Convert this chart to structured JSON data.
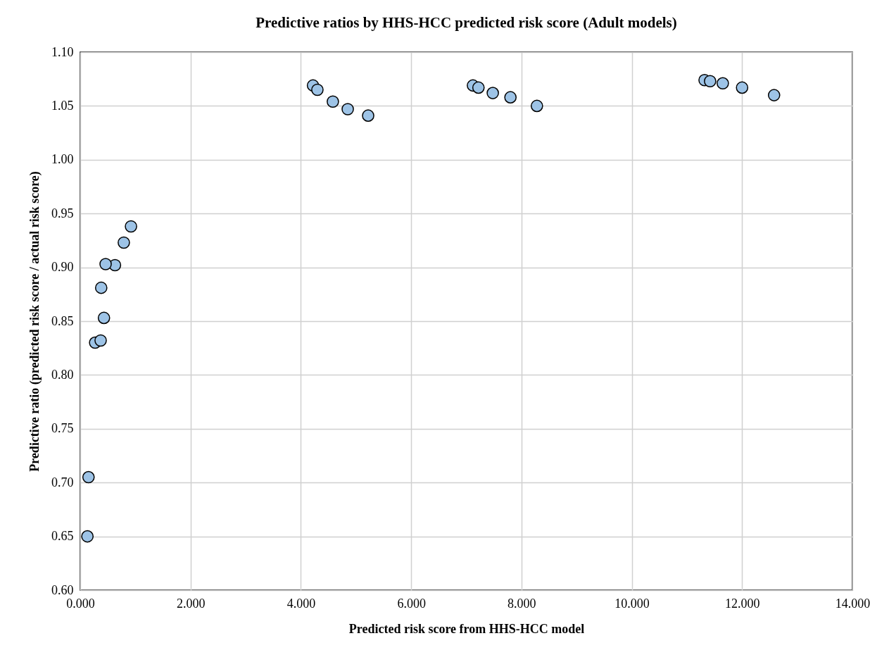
{
  "chart_data": {
    "type": "scatter",
    "title": "Predictive ratios by HHS-HCC predicted risk score (Adult models)",
    "xlabel": "Predicted risk score from HHS-HCC model",
    "ylabel": "Predictive ratio (predicted risk score / actual risk score)",
    "x": [
      0.13,
      0.15,
      0.27,
      0.37,
      0.43,
      0.38,
      0.63,
      0.46,
      0.79,
      0.92,
      4.22,
      4.3,
      4.58,
      4.85,
      5.22,
      7.12,
      7.22,
      7.48,
      7.8,
      8.28,
      11.32,
      11.42,
      11.65,
      12.0,
      12.58
    ],
    "series": [
      {
        "color": "#9dc3e6",
        "values": [
          0.65,
          0.705,
          0.83,
          0.832,
          0.853,
          0.881,
          0.902,
          0.903,
          0.923,
          0.938,
          1.069,
          1.065,
          1.054,
          1.047,
          1.041,
          1.069,
          1.067,
          1.062,
          1.058,
          1.05,
          1.074,
          1.073,
          1.071,
          1.067,
          1.06
        ]
      }
    ],
    "xlim": [
      0,
      14
    ],
    "ylim": [
      0.6,
      1.1
    ],
    "xticks": [
      {
        "value": 0,
        "label": "0.000"
      },
      {
        "value": 2,
        "label": "2.000"
      },
      {
        "value": 4,
        "label": "4.000"
      },
      {
        "value": 6,
        "label": "6.000"
      },
      {
        "value": 8,
        "label": "8.000"
      },
      {
        "value": 10,
        "label": "10.000"
      },
      {
        "value": 12,
        "label": "12.000"
      },
      {
        "value": 14,
        "label": "14.000"
      }
    ],
    "yticks": [
      {
        "value": 0.6,
        "label": "0.60"
      },
      {
        "value": 0.65,
        "label": "0.65"
      },
      {
        "value": 0.7,
        "label": "0.70"
      },
      {
        "value": 0.75,
        "label": "0.75"
      },
      {
        "value": 0.8,
        "label": "0.80"
      },
      {
        "value": 0.85,
        "label": "0.85"
      },
      {
        "value": 0.9,
        "label": "0.90"
      },
      {
        "value": 0.95,
        "label": "0.95"
      },
      {
        "value": 1.0,
        "label": "1.00"
      },
      {
        "value": 1.05,
        "label": "1.05"
      },
      {
        "value": 1.1,
        "label": "1.10"
      }
    ],
    "grid": true,
    "marker": "circle"
  }
}
